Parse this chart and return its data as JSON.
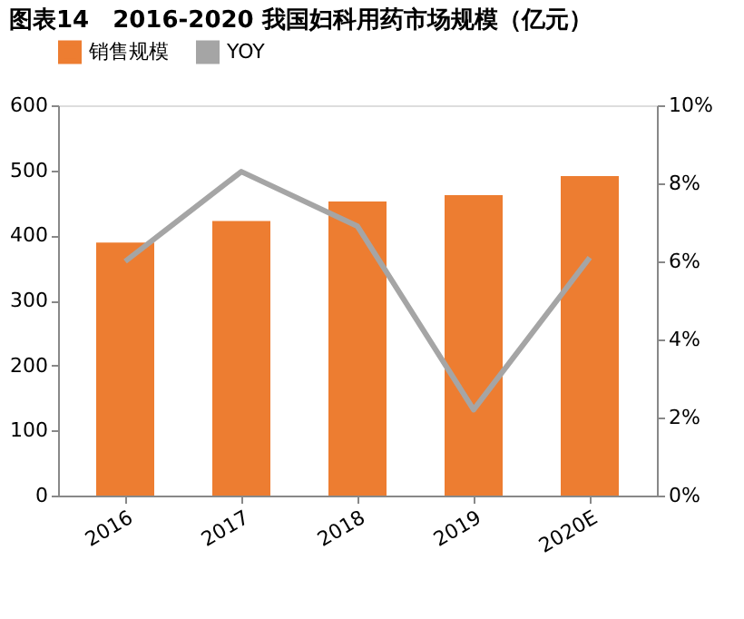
{
  "chart_data": {
    "type": "bar",
    "title": "图表14　2016-2020 我国妇科用药市场规模（亿元）",
    "categories": [
      "2016",
      "2017",
      "2018",
      "2019",
      "2020E"
    ],
    "series": [
      {
        "name": "销售规模",
        "color": "#ed7d31",
        "values": [
          389,
          422,
          452,
          462,
          491
        ]
      },
      {
        "name": "YOY",
        "color": "#a5a5a5",
        "type": "line",
        "axis": "y2",
        "values": [
          6.0,
          8.3,
          6.9,
          2.2,
          6.1
        ]
      }
    ],
    "ylim": [
      0,
      600
    ],
    "yticks": [
      0,
      100,
      200,
      300,
      400,
      500,
      600
    ],
    "y2lim": [
      0,
      10
    ],
    "y2ticks": [
      {
        "value": 0,
        "label": "0%"
      },
      {
        "value": 2,
        "label": "2%"
      },
      {
        "value": 4,
        "label": "4%"
      },
      {
        "value": 6,
        "label": "6%"
      },
      {
        "value": 8,
        "label": "8%"
      },
      {
        "value": 10,
        "label": "10%"
      }
    ],
    "legend": "top",
    "grid": false
  }
}
